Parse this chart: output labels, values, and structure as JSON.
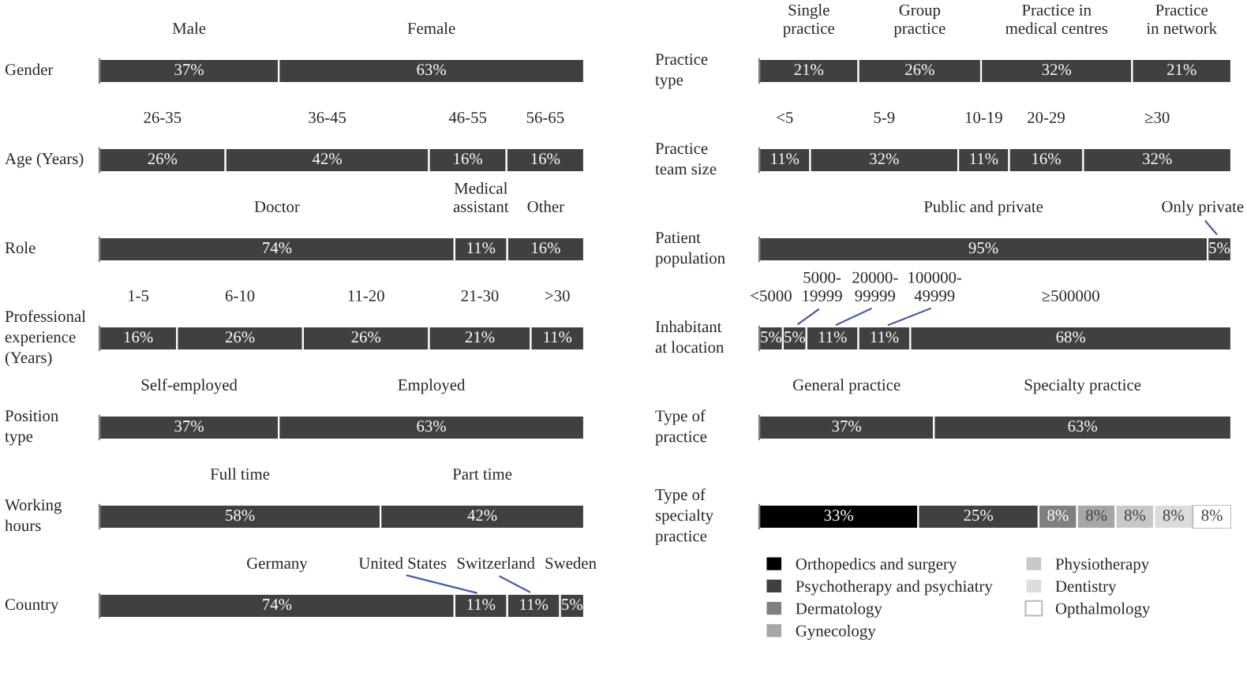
{
  "chart_data": [
    {
      "type": "bar",
      "orientation": "horizontal",
      "stacked": true,
      "categories": [
        "Gender"
      ],
      "series": [
        {
          "name": "Male",
          "color": "#404040",
          "values": [
            37
          ],
          "value_labels": [
            "37%"
          ]
        },
        {
          "name": "Female",
          "color": "#404040",
          "values": [
            63
          ],
          "value_labels": [
            "63%"
          ]
        }
      ]
    },
    {
      "type": "bar",
      "orientation": "horizontal",
      "stacked": true,
      "categories": [
        "Age (Years)"
      ],
      "series": [
        {
          "name": "26-35",
          "color": "#404040",
          "values": [
            26
          ],
          "value_labels": [
            "26%"
          ]
        },
        {
          "name": "36-45",
          "color": "#404040",
          "values": [
            42
          ],
          "value_labels": [
            "42%"
          ]
        },
        {
          "name": "46-55",
          "color": "#404040",
          "values": [
            16
          ],
          "value_labels": [
            "16%"
          ]
        },
        {
          "name": "56-65",
          "color": "#404040",
          "values": [
            16
          ],
          "value_labels": [
            "16%"
          ]
        }
      ]
    },
    {
      "type": "bar",
      "orientation": "horizontal",
      "stacked": true,
      "categories": [
        "Role"
      ],
      "series": [
        {
          "name": "Doctor",
          "color": "#404040",
          "values": [
            74
          ],
          "value_labels": [
            "74%"
          ]
        },
        {
          "name": "Medical\nassistant",
          "color": "#404040",
          "values": [
            11
          ],
          "value_labels": [
            "11%"
          ]
        },
        {
          "name": "Other",
          "color": "#404040",
          "values": [
            16
          ],
          "value_labels": [
            "16%"
          ]
        }
      ]
    },
    {
      "type": "bar",
      "orientation": "horizontal",
      "stacked": true,
      "categories": [
        "Professional\nexperience\n(Years)"
      ],
      "series": [
        {
          "name": "1-5",
          "color": "#404040",
          "values": [
            16
          ],
          "value_labels": [
            "16%"
          ]
        },
        {
          "name": "6-10",
          "color": "#404040",
          "values": [
            26
          ],
          "value_labels": [
            "26%"
          ]
        },
        {
          "name": "11-20",
          "color": "#404040",
          "values": [
            26
          ],
          "value_labels": [
            "26%"
          ]
        },
        {
          "name": "21-30",
          "color": "#404040",
          "values": [
            21
          ],
          "value_labels": [
            "21%"
          ]
        },
        {
          "name": ">30",
          "color": "#404040",
          "values": [
            11
          ],
          "value_labels": [
            "11%"
          ]
        }
      ]
    },
    {
      "type": "bar",
      "orientation": "horizontal",
      "stacked": true,
      "categories": [
        "Position\ntype"
      ],
      "series": [
        {
          "name": "Self-employed",
          "color": "#404040",
          "values": [
            37
          ],
          "value_labels": [
            "37%"
          ]
        },
        {
          "name": "Employed",
          "color": "#404040",
          "values": [
            63
          ],
          "value_labels": [
            "63%"
          ]
        }
      ]
    },
    {
      "type": "bar",
      "orientation": "horizontal",
      "stacked": true,
      "categories": [
        "Working\nhours"
      ],
      "series": [
        {
          "name": "Full time",
          "color": "#404040",
          "values": [
            58
          ],
          "value_labels": [
            "58%"
          ]
        },
        {
          "name": "Part time",
          "color": "#404040",
          "values": [
            42
          ],
          "value_labels": [
            "42%"
          ]
        }
      ]
    },
    {
      "type": "bar",
      "orientation": "horizontal",
      "stacked": true,
      "categories": [
        "Country"
      ],
      "series": [
        {
          "name": "Germany",
          "color": "#404040",
          "values": [
            74
          ],
          "value_labels": [
            "74%"
          ]
        },
        {
          "name": "United States",
          "color": "#404040",
          "values": [
            11
          ],
          "value_labels": [
            "11%"
          ]
        },
        {
          "name": "Switzerland",
          "color": "#404040",
          "values": [
            11
          ],
          "value_labels": [
            "11%"
          ]
        },
        {
          "name": "Sweden",
          "color": "#404040",
          "values": [
            5
          ],
          "value_labels": [
            "5%"
          ]
        }
      ]
    },
    {
      "type": "bar",
      "orientation": "horizontal",
      "stacked": true,
      "categories": [
        "Practice\ntype"
      ],
      "series": [
        {
          "name": "Single\npractice",
          "color": "#404040",
          "values": [
            21
          ],
          "value_labels": [
            "21%"
          ]
        },
        {
          "name": "Group\npractice",
          "color": "#404040",
          "values": [
            26
          ],
          "value_labels": [
            "26%"
          ]
        },
        {
          "name": "Practice in\nmedical centres",
          "color": "#404040",
          "values": [
            32
          ],
          "value_labels": [
            "32%"
          ]
        },
        {
          "name": "Practice\nin network",
          "color": "#404040",
          "values": [
            21
          ],
          "value_labels": [
            "21%"
          ]
        }
      ]
    },
    {
      "type": "bar",
      "orientation": "horizontal",
      "stacked": true,
      "categories": [
        "Practice\nteam size"
      ],
      "series": [
        {
          "name": "<5",
          "color": "#404040",
          "values": [
            11
          ],
          "value_labels": [
            "11%"
          ]
        },
        {
          "name": "5-9",
          "color": "#404040",
          "values": [
            32
          ],
          "value_labels": [
            "32%"
          ]
        },
        {
          "name": "10-19",
          "color": "#404040",
          "values": [
            11
          ],
          "value_labels": [
            "11%"
          ]
        },
        {
          "name": "20-29",
          "color": "#404040",
          "values": [
            16
          ],
          "value_labels": [
            "16%"
          ]
        },
        {
          "name": "≥30",
          "color": "#404040",
          "values": [
            32
          ],
          "value_labels": [
            "32%"
          ]
        }
      ]
    },
    {
      "type": "bar",
      "orientation": "horizontal",
      "stacked": true,
      "categories": [
        "Patient\npopulation"
      ],
      "series": [
        {
          "name": "Public and private",
          "color": "#404040",
          "values": [
            95
          ],
          "value_labels": [
            "95%"
          ]
        },
        {
          "name": "Only private",
          "color": "#404040",
          "values": [
            5
          ],
          "value_labels": [
            "5%"
          ]
        }
      ]
    },
    {
      "type": "bar",
      "orientation": "horizontal",
      "stacked": true,
      "categories": [
        "Inhabitant\nat location"
      ],
      "series": [
        {
          "name": "<5000",
          "color": "#404040",
          "values": [
            5
          ],
          "value_labels": [
            "5%"
          ]
        },
        {
          "name": "5000-\n19999",
          "color": "#404040",
          "values": [
            5
          ],
          "value_labels": [
            "5%"
          ]
        },
        {
          "name": "20000-\n99999",
          "color": "#404040",
          "values": [
            11
          ],
          "value_labels": [
            "11%"
          ]
        },
        {
          "name": "100000-\n49999",
          "color": "#404040",
          "values": [
            11
          ],
          "value_labels": [
            "11%"
          ]
        },
        {
          "name": "≥500000",
          "color": "#404040",
          "values": [
            68
          ],
          "value_labels": [
            "68%"
          ]
        }
      ]
    },
    {
      "type": "bar",
      "orientation": "horizontal",
      "stacked": true,
      "categories": [
        "Type of\npractice"
      ],
      "series": [
        {
          "name": "General practice",
          "color": "#404040",
          "values": [
            37
          ],
          "value_labels": [
            "37%"
          ]
        },
        {
          "name": "Specialty practice",
          "color": "#404040",
          "values": [
            63
          ],
          "value_labels": [
            "63%"
          ]
        }
      ]
    },
    {
      "type": "bar",
      "orientation": "horizontal",
      "stacked": true,
      "legend": "bottom",
      "categories": [
        "Type of\nspecialty\npractice"
      ],
      "series": [
        {
          "name": "Orthopedics and surgery",
          "color": "#000000",
          "values": [
            33
          ],
          "value_labels": [
            "33%"
          ]
        },
        {
          "name": "Psychotherapy and psychiatry",
          "color": "#404040",
          "values": [
            25
          ],
          "value_labels": [
            "25%"
          ]
        },
        {
          "name": "Dermatology",
          "color": "#808080",
          "values": [
            8
          ],
          "value_labels": [
            "8%"
          ]
        },
        {
          "name": "Gynecology",
          "color": "#a6a6a6",
          "values": [
            8
          ],
          "value_labels": [
            "8%"
          ]
        },
        {
          "name": "Physiotherapy",
          "color": "#c8c8c8",
          "values": [
            8
          ],
          "value_labels": [
            "8%"
          ]
        },
        {
          "name": "Dentistry",
          "color": "#dcdcdc",
          "values": [
            8
          ],
          "value_labels": [
            "8%"
          ]
        },
        {
          "name": "Opthalmology",
          "color": "#ffffff",
          "values": [
            8
          ],
          "value_labels": [
            "8%"
          ]
        }
      ]
    }
  ]
}
